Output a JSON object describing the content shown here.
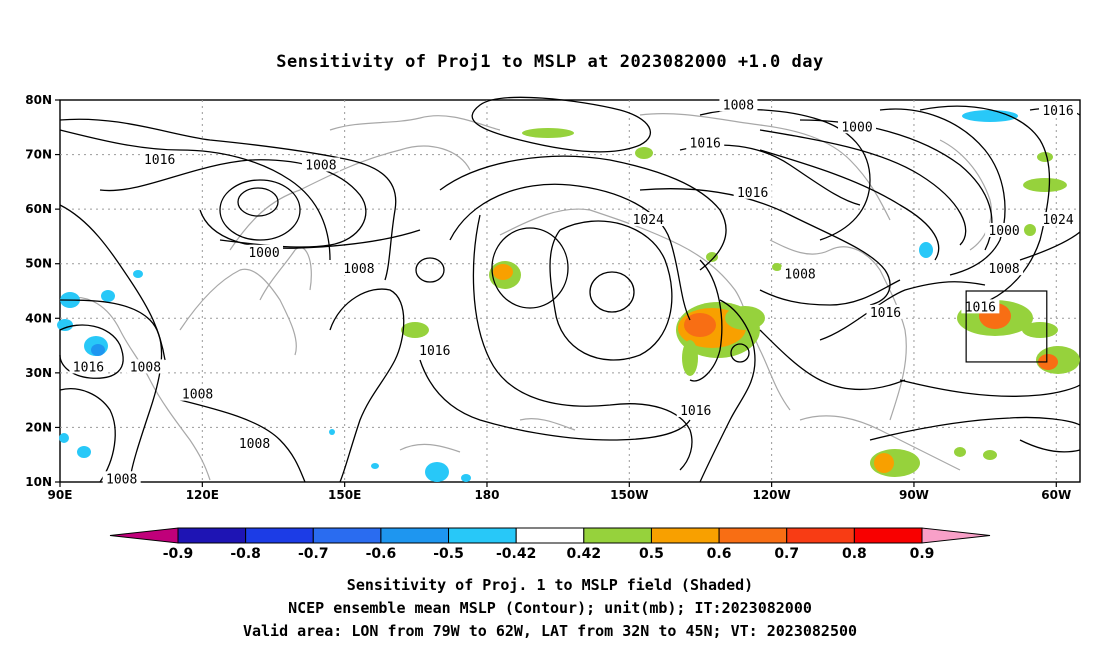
{
  "title": "Sensitivity of Proj1 to MSLP at 2023082000 +1.0 day",
  "map": {
    "lon_range": [
      90,
      305
    ],
    "lat_range": [
      10,
      80
    ],
    "lat_labels": [
      "80N",
      "70N",
      "60N",
      "50N",
      "40N",
      "30N",
      "20N",
      "10N"
    ],
    "lat_values": [
      80,
      70,
      60,
      50,
      40,
      30,
      20,
      10
    ],
    "lon_labels": [
      "90E",
      "120E",
      "150E",
      "180",
      "150W",
      "120W",
      "90W",
      "60W"
    ],
    "lon_values": [
      90,
      120,
      150,
      180,
      210,
      240,
      270,
      300
    ],
    "verification_box": {
      "lon": [
        281,
        298
      ],
      "lat": [
        32,
        45
      ]
    }
  },
  "contour_labels": [
    {
      "text": "1016",
      "lon": 111,
      "lat": 69
    },
    {
      "text": "1008",
      "lon": 145,
      "lat": 68
    },
    {
      "text": "1000",
      "lon": 133,
      "lat": 52
    },
    {
      "text": "1008",
      "lon": 153,
      "lat": 49
    },
    {
      "text": "1016",
      "lon": 169,
      "lat": 34
    },
    {
      "text": "1016",
      "lon": 96,
      "lat": 31
    },
    {
      "text": "1008",
      "lon": 108,
      "lat": 31
    },
    {
      "text": "1008",
      "lon": 119,
      "lat": 26
    },
    {
      "text": "1008",
      "lon": 131,
      "lat": 17
    },
    {
      "text": "1008",
      "lon": 103,
      "lat": 10.5
    },
    {
      "text": "1008",
      "lon": 233,
      "lat": 79
    },
    {
      "text": "1016",
      "lon": 226,
      "lat": 72
    },
    {
      "text": "1016",
      "lon": 236,
      "lat": 63
    },
    {
      "text": "1024",
      "lon": 214,
      "lat": 58
    },
    {
      "text": "1000",
      "lon": 258,
      "lat": 75
    },
    {
      "text": "1008",
      "lon": 246,
      "lat": 48
    },
    {
      "text": "1016",
      "lon": 224,
      "lat": 23
    },
    {
      "text": "1016",
      "lon": 264,
      "lat": 41
    },
    {
      "text": "1016",
      "lon": 284,
      "lat": 42
    },
    {
      "text": "1000",
      "lon": 289,
      "lat": 56
    },
    {
      "text": "1008",
      "lon": 289,
      "lat": 49
    },
    {
      "text": "1016",
      "lon": 304,
      "lat": 78
    },
    {
      "text": "1024",
      "lon": 305,
      "lat": 58
    }
  ],
  "colorbar": {
    "labels": [
      "-0.9",
      "-0.8",
      "-0.7",
      "-0.6",
      "-0.5",
      "-0.42",
      "0.42",
      "0.5",
      "0.6",
      "0.7",
      "0.8",
      "0.9"
    ],
    "colors": [
      "#c0007a",
      "#1e14b4",
      "#1c3ce6",
      "#2a6cf0",
      "#1e96f0",
      "#28c8f8",
      "#ffffff",
      "#96d23c",
      "#f8a000",
      "#f86e14",
      "#f83c14",
      "#f80000",
      "#f8a0c8"
    ]
  },
  "captions": [
    "Sensitivity of Proj. 1 to MSLP field (Shaded)",
    "NCEP ensemble mean MSLP (Contour); unit(mb); IT:2023082000",
    "Valid area: LON from 79W to 62W, LAT from 32N to 45N; VT: 2023082500"
  ]
}
